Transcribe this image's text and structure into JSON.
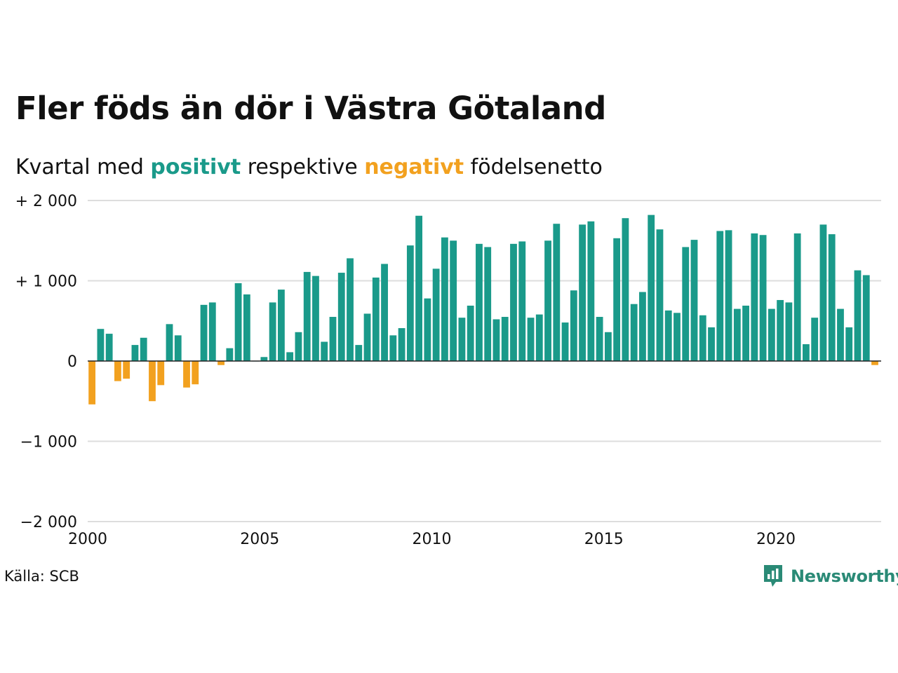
{
  "header": {
    "title": "Fler föds än dör i Västra Götaland",
    "subtitle_start": "Kvartal med ",
    "subtitle_positive": "positivt",
    "subtitle_middle": " respektive ",
    "subtitle_negative": "negativt",
    "subtitle_end": " födelsenetto"
  },
  "footer": {
    "source": "Källa: SCB",
    "brand": "Newsworthy",
    "brand_icon": "newsworthy-logo-icon"
  },
  "colors": {
    "positive": "#1a9a8a",
    "negative": "#f2a11f",
    "grid": "#dddddd",
    "zero_line": "#222222",
    "brand": "#2a8a76"
  },
  "chart_data": {
    "type": "bar",
    "title": "Fler föds än dör i Västra Götaland",
    "subtitle": "Kvartal med positivt respektive negativt födelsenetto",
    "xlabel": "",
    "ylabel": "",
    "ylim": [
      -2000,
      2000
    ],
    "yticks": [
      2000,
      1000,
      0,
      -1000,
      -2000
    ],
    "ytick_labels": [
      "+ 2 000",
      "+ 1 000",
      "0",
      "−1 000",
      "−2 000"
    ],
    "xticks": [
      2000,
      2005,
      2010,
      2015,
      2020
    ],
    "xtick_labels": [
      "2000",
      "2005",
      "2010",
      "2015",
      "2020"
    ],
    "grid": true,
    "x_start": "2000 Q1",
    "quarters_per_year": 4,
    "values": [
      -540,
      400,
      340,
      -250,
      -220,
      200,
      290,
      -500,
      -300,
      460,
      320,
      -330,
      -290,
      700,
      730,
      -50,
      160,
      970,
      830,
      0,
      50,
      730,
      890,
      110,
      360,
      1110,
      1060,
      240,
      550,
      1100,
      1280,
      200,
      590,
      1040,
      1210,
      320,
      410,
      1440,
      1810,
      780,
      1150,
      1540,
      1500,
      540,
      690,
      1460,
      1420,
      520,
      550,
      1460,
      1490,
      540,
      580,
      1500,
      1710,
      480,
      880,
      1700,
      1740,
      550,
      360,
      1530,
      1780,
      710,
      860,
      1820,
      1640,
      630,
      600,
      1420,
      1510,
      570,
      420,
      1620,
      1630,
      650,
      690,
      1590,
      1570,
      650,
      760,
      730,
      1590,
      210,
      540,
      1700,
      1580,
      650,
      420,
      1130,
      1070,
      -50
    ]
  }
}
